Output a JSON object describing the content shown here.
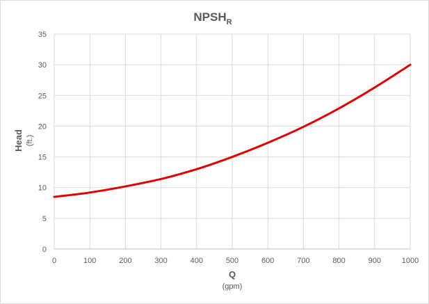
{
  "chart_data": {
    "type": "line",
    "title": "NPSH",
    "title_subscript": "R",
    "xlabel": "Q",
    "xlabel_unit": "(gpm)",
    "ylabel": "Head",
    "ylabel_unit": "(ft.)",
    "xlim": [
      0,
      1000
    ],
    "ylim": [
      0,
      35
    ],
    "x_ticks": [
      0,
      100,
      200,
      300,
      400,
      500,
      600,
      700,
      800,
      900,
      1000
    ],
    "y_ticks": [
      0,
      5,
      10,
      15,
      20,
      25,
      30,
      35
    ],
    "grid": true,
    "series": [
      {
        "color": "#e00000",
        "x": [
          0,
          100,
          200,
          300,
          400,
          500,
          600,
          700,
          800,
          900,
          1000
        ],
        "y": [
          8.5,
          9.2,
          10.2,
          11.4,
          13.0,
          15.0,
          17.3,
          19.9,
          22.9,
          26.3,
          30.0
        ]
      }
    ]
  }
}
